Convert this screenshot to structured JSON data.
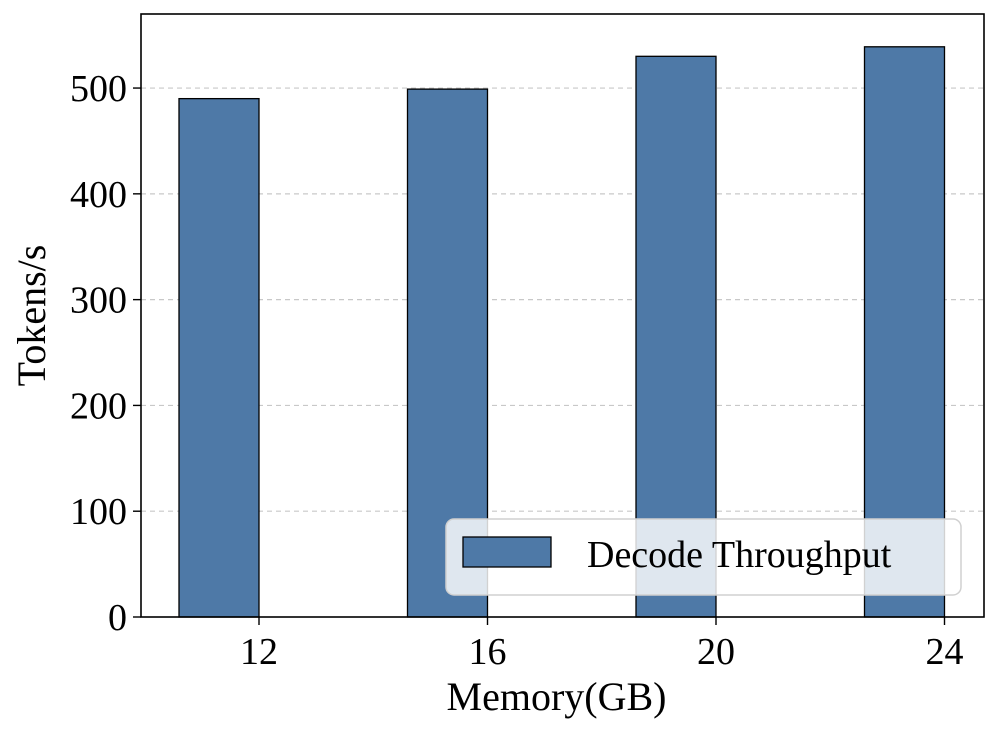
{
  "chart_data": {
    "type": "bar",
    "categories": [
      "12",
      "16",
      "20",
      "24"
    ],
    "series": [
      {
        "name": "Decode Throughput",
        "values": [
          490,
          499,
          530,
          539
        ],
        "color": "#4e79a7",
        "edge_color": "#000000"
      }
    ],
    "xlabel": "Memory(GB)",
    "ylabel": "Tokens/s",
    "ylim": [
      0,
      570
    ],
    "yticks": [
      0,
      100,
      200,
      300,
      400,
      500
    ],
    "grid": {
      "axis": "y",
      "style": "dashed",
      "color": "#c8c8c8"
    },
    "legend": {
      "placement": "lower-right",
      "entries": [
        "Decode Throughput"
      ]
    }
  }
}
